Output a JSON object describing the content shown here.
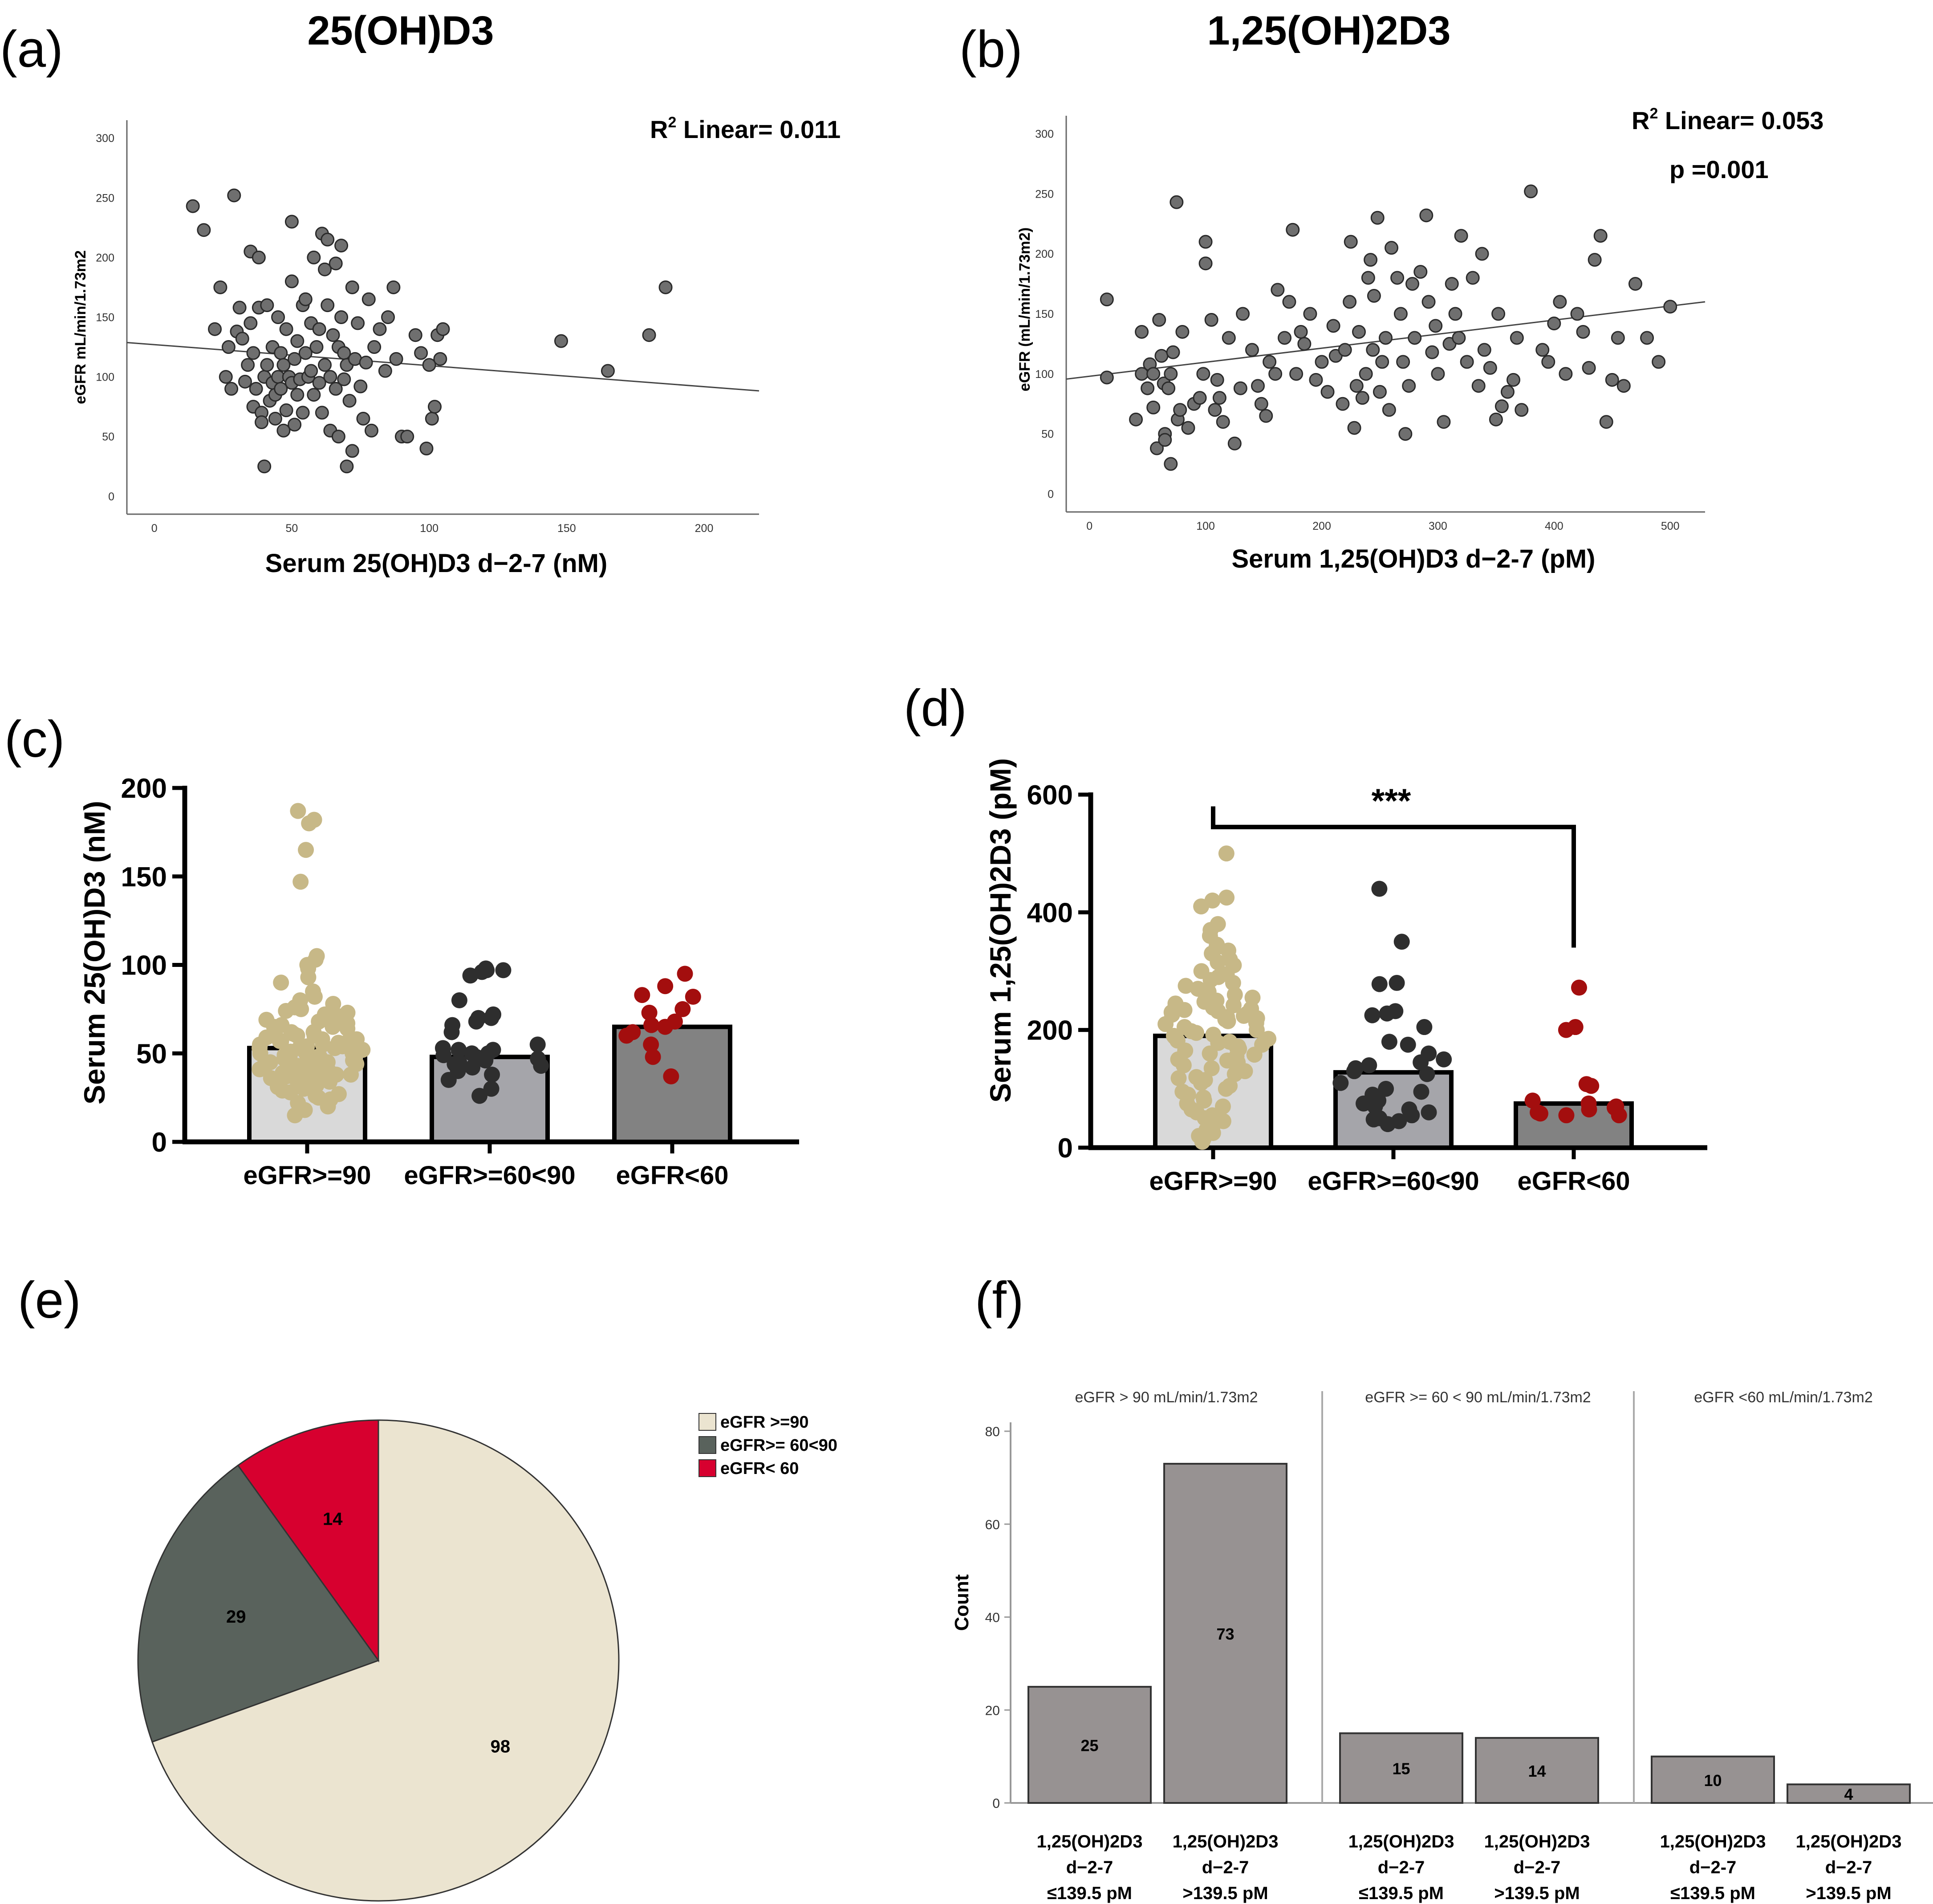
{
  "colors": {
    "gray_point": "#6f6f6f",
    "tan": "#c7b887",
    "dark": "#2e2e2e",
    "red": "#a30e0e",
    "bar_light": "#d9d9d9",
    "bar_mid": "#a5a5aa",
    "bar_dark": "#828282",
    "pie_tan": "#ebe4d0",
    "pie_gray": "#59625c",
    "pie_red": "#d7002f",
    "f_bar": "#979292"
  },
  "chart_data": [
    {
      "panel": "(a)",
      "type": "scatter",
      "title": "25(OH)D3",
      "xlabel": "Serum 25(OH)D3 d−2-7 (nM)",
      "ylabel": "eGFR mL/min/1.73m2",
      "xlim": [
        -10,
        220
      ],
      "ylim": [
        -15,
        315
      ],
      "xticks": [
        "0",
        "50",
        "100",
        "150",
        "200"
      ],
      "yticks": [
        "0",
        "50",
        "100",
        "150",
        "200",
        "250",
        "300"
      ],
      "annotation_prefix": "R",
      "annotation_sup": "2",
      "annotation_rest": " Linear= 0.011",
      "fit": {
        "intercept": 127,
        "slope": -0.176
      },
      "points": [
        [
          14,
          243
        ],
        [
          18,
          223
        ],
        [
          22,
          140
        ],
        [
          24,
          175
        ],
        [
          26,
          100
        ],
        [
          27,
          125
        ],
        [
          28,
          90
        ],
        [
          29,
          252
        ],
        [
          30,
          138
        ],
        [
          31,
          158
        ],
        [
          32,
          132
        ],
        [
          33,
          96
        ],
        [
          34,
          110
        ],
        [
          35,
          205
        ],
        [
          35,
          145
        ],
        [
          36,
          120
        ],
        [
          36,
          75
        ],
        [
          37,
          90
        ],
        [
          38,
          200
        ],
        [
          38,
          158
        ],
        [
          39,
          70
        ],
        [
          39,
          62
        ],
        [
          40,
          25
        ],
        [
          40,
          100
        ],
        [
          41,
          160
        ],
        [
          41,
          110
        ],
        [
          42,
          80
        ],
        [
          43,
          125
        ],
        [
          43,
          95
        ],
        [
          44,
          85
        ],
        [
          44,
          65
        ],
        [
          45,
          150
        ],
        [
          45,
          100
        ],
        [
          46,
          120
        ],
        [
          46,
          90
        ],
        [
          47,
          55
        ],
        [
          47,
          110
        ],
        [
          48,
          140
        ],
        [
          48,
          72
        ],
        [
          49,
          100
        ],
        [
          50,
          230
        ],
        [
          50,
          180
        ],
        [
          50,
          95
        ],
        [
          51,
          60
        ],
        [
          51,
          115
        ],
        [
          52,
          130
        ],
        [
          52,
          85
        ],
        [
          53,
          98
        ],
        [
          54,
          160
        ],
        [
          54,
          70
        ],
        [
          55,
          165
        ],
        [
          55,
          120
        ],
        [
          56,
          100
        ],
        [
          57,
          145
        ],
        [
          57,
          105
        ],
        [
          58,
          200
        ],
        [
          58,
          85
        ],
        [
          59,
          125
        ],
        [
          60,
          140
        ],
        [
          60,
          95
        ],
        [
          61,
          220
        ],
        [
          61,
          70
        ],
        [
          62,
          190
        ],
        [
          62,
          110
        ],
        [
          63,
          160
        ],
        [
          63,
          215
        ],
        [
          64,
          100
        ],
        [
          64,
          55
        ],
        [
          65,
          135
        ],
        [
          66,
          195
        ],
        [
          66,
          90
        ],
        [
          67,
          50
        ],
        [
          67,
          125
        ],
        [
          68,
          210
        ],
        [
          68,
          150
        ],
        [
          69,
          120
        ],
        [
          69,
          98
        ],
        [
          70,
          110
        ],
        [
          70,
          25
        ],
        [
          71,
          80
        ],
        [
          72,
          38
        ],
        [
          72,
          175
        ],
        [
          73,
          115
        ],
        [
          74,
          145
        ],
        [
          75,
          92
        ],
        [
          76,
          65
        ],
        [
          77,
          112
        ],
        [
          78,
          165
        ],
        [
          79,
          55
        ],
        [
          80,
          125
        ],
        [
          82,
          140
        ],
        [
          84,
          105
        ],
        [
          85,
          150
        ],
        [
          87,
          175
        ],
        [
          88,
          115
        ],
        [
          90,
          50
        ],
        [
          92,
          50
        ],
        [
          95,
          135
        ],
        [
          97,
          120
        ],
        [
          99,
          40
        ],
        [
          100,
          110
        ],
        [
          101,
          65
        ],
        [
          102,
          75
        ],
        [
          103,
          135
        ],
        [
          104,
          115
        ],
        [
          105,
          140
        ],
        [
          148,
          130
        ],
        [
          165,
          105
        ],
        [
          180,
          135
        ],
        [
          186,
          175
        ]
      ]
    },
    {
      "panel": "(b)",
      "type": "scatter",
      "title": "1,25(OH)2D3",
      "xlabel": "Serum 1,25(OH)D3 d−2-7 (pM)",
      "ylabel": "eGFR (mL/min/1.73m2)",
      "xlim": [
        -20,
        530
      ],
      "ylim": [
        -15,
        315
      ],
      "xticks": [
        "0",
        "100",
        "200",
        "300",
        "400",
        "500"
      ],
      "yticks": [
        "0",
        "50",
        "100",
        "150",
        "200",
        "250",
        "300"
      ],
      "annotation_prefix": "R",
      "annotation_sup": "2",
      "annotation_rest": " Linear= 0.053",
      "annotation2": "p =0.001",
      "fit": {
        "intercept": 98,
        "slope": 0.117
      },
      "points": [
        [
          15,
          162
        ],
        [
          15,
          97
        ],
        [
          40,
          62
        ],
        [
          45,
          100
        ],
        [
          45,
          135
        ],
        [
          50,
          88
        ],
        [
          52,
          108
        ],
        [
          55,
          100
        ],
        [
          55,
          72
        ],
        [
          58,
          38
        ],
        [
          60,
          145
        ],
        [
          62,
          115
        ],
        [
          64,
          92
        ],
        [
          65,
          50
        ],
        [
          65,
          45
        ],
        [
          68,
          88
        ],
        [
          70,
          100
        ],
        [
          70,
          25
        ],
        [
          72,
          118
        ],
        [
          75,
          243
        ],
        [
          76,
          62
        ],
        [
          78,
          70
        ],
        [
          80,
          135
        ],
        [
          85,
          55
        ],
        [
          90,
          75
        ],
        [
          95,
          80
        ],
        [
          98,
          100
        ],
        [
          100,
          210
        ],
        [
          100,
          192
        ],
        [
          105,
          145
        ],
        [
          108,
          70
        ],
        [
          110,
          95
        ],
        [
          112,
          80
        ],
        [
          115,
          60
        ],
        [
          120,
          130
        ],
        [
          125,
          42
        ],
        [
          130,
          88
        ],
        [
          132,
          150
        ],
        [
          140,
          120
        ],
        [
          145,
          90
        ],
        [
          148,
          75
        ],
        [
          152,
          65
        ],
        [
          155,
          110
        ],
        [
          160,
          100
        ],
        [
          162,
          170
        ],
        [
          168,
          130
        ],
        [
          172,
          160
        ],
        [
          175,
          220
        ],
        [
          178,
          100
        ],
        [
          182,
          135
        ],
        [
          185,
          125
        ],
        [
          190,
          150
        ],
        [
          195,
          95
        ],
        [
          200,
          110
        ],
        [
          205,
          85
        ],
        [
          210,
          140
        ],
        [
          212,
          115
        ],
        [
          218,
          75
        ],
        [
          220,
          120
        ],
        [
          224,
          160
        ],
        [
          225,
          210
        ],
        [
          228,
          55
        ],
        [
          230,
          90
        ],
        [
          232,
          135
        ],
        [
          235,
          80
        ],
        [
          238,
          100
        ],
        [
          240,
          180
        ],
        [
          242,
          195
        ],
        [
          244,
          120
        ],
        [
          245,
          165
        ],
        [
          248,
          230
        ],
        [
          250,
          85
        ],
        [
          252,
          110
        ],
        [
          255,
          130
        ],
        [
          258,
          70
        ],
        [
          260,
          205
        ],
        [
          265,
          180
        ],
        [
          268,
          150
        ],
        [
          270,
          110
        ],
        [
          272,
          50
        ],
        [
          275,
          90
        ],
        [
          278,
          175
        ],
        [
          280,
          130
        ],
        [
          285,
          185
        ],
        [
          290,
          232
        ],
        [
          292,
          160
        ],
        [
          295,
          118
        ],
        [
          298,
          140
        ],
        [
          300,
          100
        ],
        [
          305,
          60
        ],
        [
          310,
          125
        ],
        [
          312,
          175
        ],
        [
          315,
          150
        ],
        [
          318,
          130
        ],
        [
          320,
          215
        ],
        [
          325,
          110
        ],
        [
          330,
          180
        ],
        [
          335,
          90
        ],
        [
          338,
          200
        ],
        [
          340,
          120
        ],
        [
          345,
          105
        ],
        [
          350,
          62
        ],
        [
          352,
          150
        ],
        [
          355,
          73
        ],
        [
          360,
          85
        ],
        [
          365,
          95
        ],
        [
          368,
          130
        ],
        [
          372,
          70
        ],
        [
          380,
          252
        ],
        [
          390,
          120
        ],
        [
          395,
          110
        ],
        [
          400,
          142
        ],
        [
          405,
          160
        ],
        [
          410,
          100
        ],
        [
          420,
          150
        ],
        [
          425,
          135
        ],
        [
          430,
          105
        ],
        [
          435,
          195
        ],
        [
          440,
          215
        ],
        [
          445,
          60
        ],
        [
          450,
          95
        ],
        [
          455,
          130
        ],
        [
          460,
          90
        ],
        [
          470,
          175
        ],
        [
          480,
          130
        ],
        [
          490,
          110
        ],
        [
          500,
          156
        ]
      ]
    },
    {
      "panel": "(c)",
      "type": "bar",
      "ylabel": "Serum 25(OH)D3 (nM)",
      "ylim": [
        0,
        200
      ],
      "yticks": [
        "0",
        "50",
        "100",
        "150",
        "200"
      ],
      "categories": [
        "eGFR>=90",
        "eGFR>=60<90",
        "eGFR<60"
      ],
      "values": [
        53,
        48,
        65
      ],
      "points": [
        [
          187,
          182,
          180,
          165,
          147,
          105,
          103,
          100,
          98,
          93,
          90,
          85,
          82,
          80,
          78,
          76,
          75,
          74,
          73,
          72,
          71,
          70,
          69,
          68,
          67,
          66,
          65,
          65,
          64,
          63,
          62,
          62,
          61,
          60,
          60,
          59,
          58,
          58,
          57,
          57,
          56,
          56,
          55,
          55,
          54,
          54,
          53,
          53,
          53,
          52,
          52,
          51,
          51,
          50,
          50,
          50,
          49,
          49,
          48,
          48,
          47,
          47,
          46,
          46,
          45,
          45,
          44,
          44,
          43,
          43,
          42,
          42,
          41,
          41,
          40,
          40,
          39,
          38,
          38,
          37,
          36,
          36,
          35,
          35,
          34,
          33,
          32,
          31,
          30,
          30,
          29,
          28,
          27,
          26,
          25,
          24,
          22,
          20,
          18,
          15
        ],
        [
          98,
          97,
          97,
          96,
          94,
          80,
          72,
          70,
          70,
          68,
          66,
          62,
          55,
          53,
          52,
          52,
          50,
          50,
          49,
          48,
          47,
          46,
          45,
          44,
          43,
          42,
          40,
          38,
          35,
          30,
          26
        ],
        [
          95,
          88,
          83,
          82,
          75,
          73,
          68,
          66,
          65,
          62,
          60,
          55,
          48,
          37
        ]
      ]
    },
    {
      "panel": "(d)",
      "type": "bar",
      "ylabel": "Serum 1,25(OH)2D3 (pM)",
      "ylim": [
        0,
        600
      ],
      "yticks": [
        "0",
        "200",
        "400",
        "600"
      ],
      "categories": [
        "eGFR>=90",
        "eGFR>=60<90",
        "eGFR<60"
      ],
      "values": [
        190,
        128,
        75
      ],
      "significance": "***",
      "points": [
        [
          500,
          425,
          420,
          410,
          380,
          370,
          360,
          345,
          340,
          335,
          330,
          320,
          315,
          310,
          300,
          295,
          290,
          285,
          280,
          275,
          270,
          265,
          260,
          255,
          250,
          248,
          245,
          242,
          240,
          238,
          236,
          234,
          232,
          230,
          228,
          226,
          224,
          222,
          220,
          218,
          215,
          212,
          210,
          205,
          200,
          198,
          195,
          192,
          190,
          188,
          185,
          182,
          180,
          178,
          175,
          172,
          170,
          168,
          165,
          160,
          158,
          155,
          150,
          148,
          145,
          140,
          135,
          130,
          125,
          120,
          118,
          115,
          110,
          105,
          100,
          95,
          90,
          85,
          80,
          75,
          70,
          65,
          60,
          55,
          50,
          45,
          40,
          35,
          30,
          25,
          20,
          15,
          10
        ],
        [
          440,
          350,
          280,
          278,
          232,
          228,
          225,
          205,
          180,
          175,
          160,
          150,
          145,
          140,
          135,
          130,
          125,
          110,
          100,
          95,
          90,
          80,
          75,
          70,
          65,
          60,
          55,
          50,
          48,
          45,
          40
        ],
        [
          272,
          205,
          200,
          108,
          105,
          80,
          75,
          70,
          68,
          65,
          60,
          58,
          55,
          55
        ]
      ]
    },
    {
      "panel": "(e)",
      "type": "pie",
      "labels": [
        "eGFR >=90",
        "eGFR>= 60<90",
        "eGFR< 60"
      ],
      "values": [
        98,
        29,
        14
      ]
    },
    {
      "panel": "(f)",
      "type": "bar",
      "ylabel": "Count",
      "ylim": [
        0,
        80
      ],
      "yticks": [
        "0",
        "20",
        "40",
        "60",
        "80"
      ],
      "groups": [
        {
          "title": "eGFR > 90 mL/min/1.73m2",
          "values": [
            25,
            73
          ]
        },
        {
          "title": "eGFR >= 60 < 90 mL/min/1.73m2",
          "values": [
            15,
            14
          ]
        },
        {
          "title": "eGFR <60 mL/min/1.73m2",
          "values": [
            10,
            4
          ]
        }
      ],
      "category_lines": [
        [
          "1,25(OH)2D3",
          "d−2-7",
          "≤139.5 pM"
        ],
        [
          "1,25(OH)2D3",
          "d−2-7",
          ">139.5 pM"
        ]
      ]
    }
  ]
}
